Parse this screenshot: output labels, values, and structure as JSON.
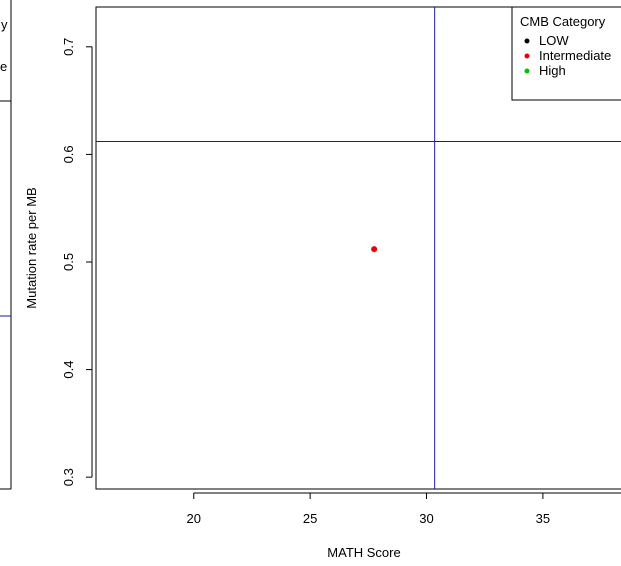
{
  "chart_data": {
    "type": "scatter",
    "xlabel": "MATH Score",
    "ylabel": "Mutation rate per MB",
    "xlim": [
      15.8,
      39.0
    ],
    "ylim": [
      0.289,
      0.737
    ],
    "xticks": [
      20,
      25,
      30,
      35
    ],
    "yticks": [
      0.3,
      0.4,
      0.5,
      0.6,
      0.7
    ],
    "vline_x": 30.35,
    "hline_y": 0.612,
    "reference_line_color": "#1a1aa0",
    "series": [
      {
        "name": "Intermediate",
        "color": "#e8000b",
        "points": [
          {
            "x": 27.75,
            "y": 0.512
          }
        ]
      }
    ],
    "legend": {
      "title": "CMB Category",
      "position": "top-right",
      "entries": [
        {
          "label": "LOW",
          "color": "#000000"
        },
        {
          "label": "Intermediate",
          "color": "#e8000b"
        },
        {
          "label": "High",
          "color": "#00c000"
        }
      ]
    },
    "left_panel_fragment": {
      "text_lines": [
        "y",
        "e"
      ],
      "hline_color": "#1a1aa0"
    }
  }
}
